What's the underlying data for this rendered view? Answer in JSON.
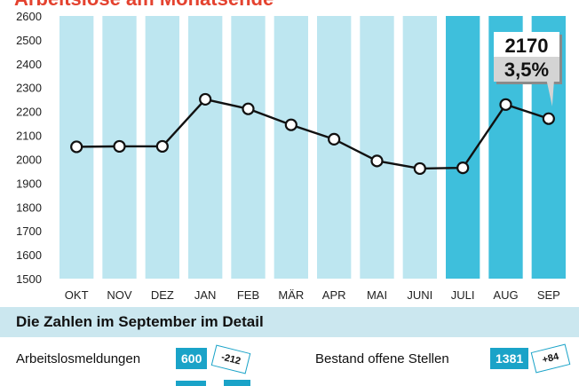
{
  "header": {
    "title": "Arbeitslose am Monatsende"
  },
  "chart_data": {
    "type": "line",
    "categories": [
      "OKT",
      "NOV",
      "DEZ",
      "JAN",
      "FEB",
      "MÄR",
      "APR",
      "MAI",
      "JUNI",
      "JULI",
      "AUG",
      "SEP"
    ],
    "values": [
      2052,
      2054,
      2054,
      2251,
      2211,
      2144,
      2084,
      1993,
      1961,
      1964,
      2229,
      2170
    ],
    "ylim": [
      1500,
      2600
    ],
    "yticks": [
      1500,
      1600,
      1700,
      1800,
      1900,
      2000,
      2100,
      2200,
      2300,
      2400,
      2500,
      2600
    ],
    "highlighted_categories": [
      "JULI",
      "AUG",
      "SEP"
    ],
    "callout": {
      "value": "2170",
      "rate": "3,5%"
    },
    "colors": {
      "column": "#bde6f0",
      "column_highlight": "#3ebfdc",
      "line": "#111111",
      "marker_fill": "#ffffff"
    },
    "grid": false,
    "legend": "none",
    "title": "Arbeitslose am Monatsende"
  },
  "details": {
    "title": "Die Zahlen im September im Detail",
    "items": [
      {
        "label": "Arbeitslosmeldungen",
        "value": "600",
        "change": "-212",
        "direction": "down"
      },
      {
        "label": "Bestand offene Stellen",
        "value": "1381",
        "change": "+84",
        "direction": "up"
      }
    ],
    "accent": "#1aa3c8",
    "banner_color": "#cbe7ef"
  }
}
